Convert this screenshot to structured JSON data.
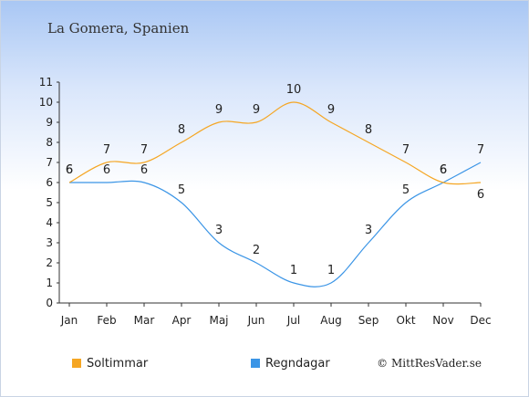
{
  "title": "La Gomera, Spanien",
  "credit": "© MittResVader.se",
  "chart_data": {
    "type": "line",
    "categories": [
      "Jan",
      "Feb",
      "Mar",
      "Apr",
      "Maj",
      "Jun",
      "Jul",
      "Aug",
      "Sep",
      "Okt",
      "Nov",
      "Dec"
    ],
    "y_ticks": [
      "0",
      "1",
      "2",
      "3",
      "4",
      "5",
      "6",
      "7",
      "8",
      "9",
      "10",
      "11"
    ],
    "ylim": [
      0,
      11
    ],
    "grid": false,
    "legend_position": "bottom",
    "series": [
      {
        "name": "Soltimmar",
        "color": "#f5a623",
        "values": [
          6,
          7,
          7,
          8,
          9,
          9,
          10,
          9,
          8,
          7,
          6,
          6
        ]
      },
      {
        "name": "Regndagar",
        "color": "#3b95e6",
        "values": [
          6,
          6,
          6,
          5,
          3,
          2,
          1,
          1,
          3,
          5,
          6,
          7
        ]
      }
    ]
  }
}
